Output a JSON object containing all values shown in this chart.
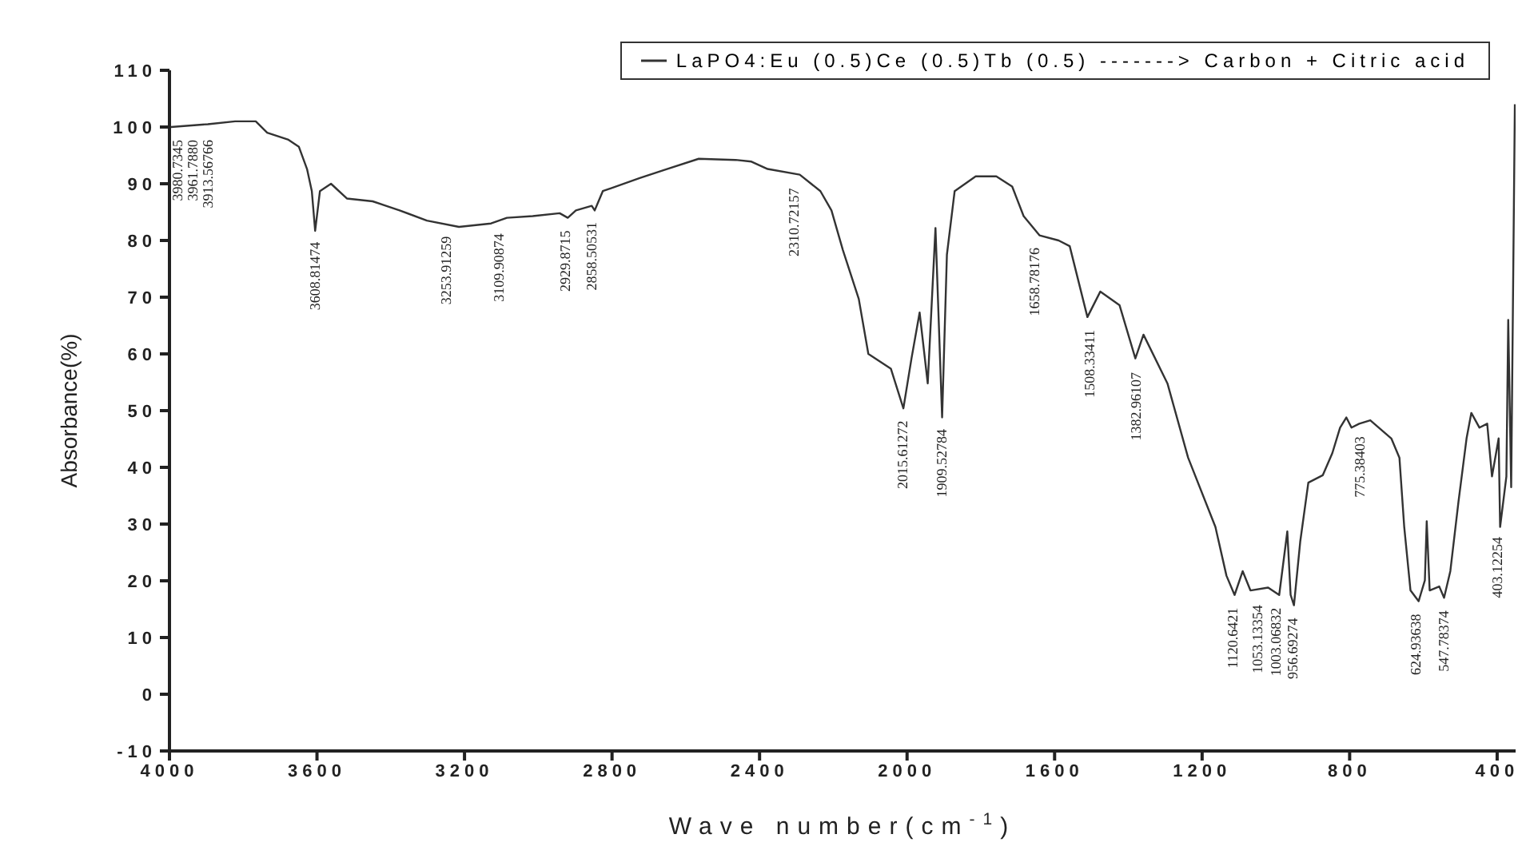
{
  "chart_data": {
    "type": "line",
    "xlabel": "Wave number(cm$^{-1}$)",
    "ylabel": "Absorbance(%)",
    "xlim": [
      4000,
      350
    ],
    "xticks": [
      4000,
      3600,
      3200,
      2800,
      2400,
      2000,
      1600,
      1200,
      800,
      400
    ],
    "ylim": [
      -10,
      110
    ],
    "yticks": [
      -10,
      0,
      10,
      20,
      30,
      40,
      50,
      60,
      70,
      80,
      90,
      100,
      110
    ],
    "grid": false,
    "legend": "top right",
    "marker": "none",
    "line_style": "solid",
    "series": [
      {
        "name": "LaPO4:Eu (0.5)Ce (0.5)Tb (0.5) -------> Carbon + Citric acid",
        "color": "#333333",
        "x": [
          3996,
          3896,
          3822,
          3766,
          3735,
          3679,
          3649,
          3627,
          3614,
          3605,
          3592,
          3562,
          3519,
          3449,
          3376,
          3302,
          3215,
          3128,
          3085,
          3015,
          2942,
          2920,
          2898,
          2855,
          2847,
          2825,
          2725,
          2651,
          2565,
          2465,
          2422,
          2378,
          2291,
          2235,
          2205,
          2174,
          2131,
          2105,
          2044,
          2010,
          1988,
          1966,
          1944,
          1923,
          1905,
          1892,
          1871,
          1814,
          1758,
          1715,
          1684,
          1641,
          1589,
          1559,
          1511,
          1476,
          1424,
          1381,
          1359,
          1294,
          1238,
          1164,
          1134,
          1112,
          1090,
          1069,
          1021,
          991,
          969,
          960,
          951,
          934,
          912,
          873,
          847,
          826,
          809,
          795,
          774,
          744,
          687,
          665,
          652,
          635,
          613,
          596,
          591,
          583,
          557,
          544,
          527,
          505,
          483,
          470,
          448,
          427,
          414,
          396,
          392,
          375,
          370,
          362,
          352
        ],
        "values": [
          100,
          100.5,
          101,
          101,
          99,
          97.8,
          96.5,
          92.6,
          88.7,
          81.7,
          88.7,
          90,
          87.4,
          86.9,
          85.3,
          83.5,
          82.4,
          83,
          84,
          84.3,
          84.8,
          84,
          85.3,
          86.1,
          85.3,
          88.7,
          91,
          92.6,
          94.4,
          94.2,
          93.9,
          92.6,
          91.6,
          88.7,
          85.3,
          78.3,
          69.7,
          60,
          57.4,
          50.4,
          59.2,
          67.3,
          54.8,
          82.2,
          48.8,
          77.5,
          88.7,
          91.3,
          91.3,
          89.5,
          84.3,
          80.9,
          80,
          79,
          66.5,
          71,
          68.6,
          59.2,
          63.4,
          54.8,
          41.7,
          29.5,
          20.9,
          17.5,
          21.7,
          18.3,
          18.8,
          17.5,
          28.7,
          17.5,
          15.7,
          26.9,
          37.3,
          38.6,
          42.5,
          47,
          48.8,
          47,
          47.7,
          48.3,
          45.1,
          41.7,
          29.5,
          18.3,
          16.4,
          20.1,
          30.5,
          18.3,
          19,
          17,
          21.7,
          33.9,
          45.1,
          49.6,
          47,
          47.7,
          38.4,
          45.1,
          29.5,
          38.4,
          66,
          36.5,
          104
        ]
      }
    ],
    "annotations": [
      {
        "text": "3980.7345",
        "x": 3980,
        "y": 100
      },
      {
        "text": "3961.7880",
        "x": 3961,
        "y": 100
      },
      {
        "text": "3913.56766",
        "x": 3913,
        "y": 100
      },
      {
        "text": "3608.81474",
        "x": 3608,
        "y": 82
      },
      {
        "text": "3253.91259",
        "x": 3253,
        "y": 83
      },
      {
        "text": "3109.90874",
        "x": 3109,
        "y": 83.5
      },
      {
        "text": "2929.8715",
        "x": 2929,
        "y": 84
      },
      {
        "text": "2858.50531",
        "x": 2858,
        "y": 85.5
      },
      {
        "text": "2310.72157",
        "x": 2310,
        "y": 91.5
      },
      {
        "text": "2015.61272",
        "x": 2015,
        "y": 50.5
      },
      {
        "text": "1909.52784",
        "x": 1909,
        "y": 49
      },
      {
        "text": "1658.78176",
        "x": 1658,
        "y": 81
      },
      {
        "text": "1508.33411",
        "x": 1508,
        "y": 66.5
      },
      {
        "text": "1382.96107",
        "x": 1382,
        "y": 59
      },
      {
        "text": "1120.6421",
        "x": 1120,
        "y": 17.5
      },
      {
        "text": "1053.13354",
        "x": 1053,
        "y": 18
      },
      {
        "text": "1003.06832",
        "x": 1003,
        "y": 17.5
      },
      {
        "text": "956.69274",
        "x": 956,
        "y": 15.7
      },
      {
        "text": "775.38403",
        "x": 775,
        "y": 47.7
      },
      {
        "text": "624.93638",
        "x": 624,
        "y": 16.4
      },
      {
        "text": "547.78374",
        "x": 547,
        "y": 17
      },
      {
        "text": "403.12254",
        "x": 403,
        "y": 30
      }
    ]
  }
}
